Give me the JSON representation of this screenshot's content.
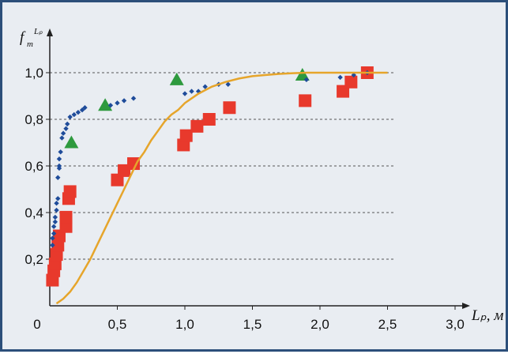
{
  "chart_data": {
    "type": "scatter",
    "ylabel": "f",
    "ylabel_sub": "m",
    "ylabel_sup": "Lₚ",
    "xlabel": "Lₚ, м",
    "xlim": [
      0,
      3.0
    ],
    "ylim": [
      0,
      1.0
    ],
    "xticks": [
      "0",
      "0,5",
      "1,0",
      "1,5",
      "2,0",
      "2,5",
      "3,0"
    ],
    "yticks": [
      "0,2",
      "0,4",
      "0,6",
      "0,8",
      "1,0"
    ],
    "grid": "horizontal dashed",
    "colors": {
      "frame": "#2c4f7a",
      "background": "#e9edf2",
      "squares": "#e8392c",
      "triangles": "#2e9a3e",
      "dots": "#1f4c9a",
      "curve": "#e6a52b"
    },
    "series": [
      {
        "marker": "square",
        "points": [
          [
            0.02,
            0.11
          ],
          [
            0.03,
            0.15
          ],
          [
            0.04,
            0.18
          ],
          [
            0.05,
            0.22
          ],
          [
            0.06,
            0.26
          ],
          [
            0.07,
            0.3
          ],
          [
            0.12,
            0.34
          ],
          [
            0.12,
            0.38
          ],
          [
            0.14,
            0.46
          ],
          [
            0.15,
            0.49
          ],
          [
            0.5,
            0.54
          ],
          [
            0.55,
            0.58
          ],
          [
            0.62,
            0.61
          ],
          [
            0.99,
            0.69
          ],
          [
            1.01,
            0.73
          ],
          [
            1.09,
            0.77
          ],
          [
            1.18,
            0.8
          ],
          [
            1.33,
            0.85
          ],
          [
            1.89,
            0.88
          ],
          [
            2.17,
            0.92
          ],
          [
            2.23,
            0.96
          ],
          [
            2.35,
            1.0
          ]
        ]
      },
      {
        "marker": "triangle",
        "points": [
          [
            0.16,
            0.7
          ],
          [
            0.41,
            0.86
          ],
          [
            0.94,
            0.97
          ],
          [
            1.87,
            0.99
          ]
        ]
      },
      {
        "marker": "dot",
        "points": [
          [
            0.02,
            0.26
          ],
          [
            0.02,
            0.29
          ],
          [
            0.03,
            0.31
          ],
          [
            0.03,
            0.34
          ],
          [
            0.04,
            0.36
          ],
          [
            0.04,
            0.38
          ],
          [
            0.05,
            0.41
          ],
          [
            0.05,
            0.44
          ],
          [
            0.06,
            0.46
          ],
          [
            0.06,
            0.55
          ],
          [
            0.07,
            0.59
          ],
          [
            0.07,
            0.6
          ],
          [
            0.07,
            0.63
          ],
          [
            0.08,
            0.66
          ],
          [
            0.09,
            0.72
          ],
          [
            0.1,
            0.74
          ],
          [
            0.12,
            0.76
          ],
          [
            0.13,
            0.78
          ],
          [
            0.15,
            0.81
          ],
          [
            0.18,
            0.82
          ],
          [
            0.21,
            0.83
          ],
          [
            0.24,
            0.84
          ],
          [
            0.26,
            0.85
          ],
          [
            0.45,
            0.86
          ],
          [
            0.5,
            0.87
          ],
          [
            0.55,
            0.88
          ],
          [
            0.62,
            0.89
          ],
          [
            1.0,
            0.91
          ],
          [
            1.05,
            0.92
          ],
          [
            1.1,
            0.92
          ],
          [
            1.15,
            0.94
          ],
          [
            1.25,
            0.95
          ],
          [
            1.32,
            0.95
          ],
          [
            1.9,
            0.97
          ],
          [
            2.15,
            0.98
          ],
          [
            2.25,
            0.99
          ],
          [
            2.35,
            1.0
          ]
        ]
      },
      {
        "marker": "line",
        "x": [
          0.05,
          0.1,
          0.15,
          0.2,
          0.25,
          0.3,
          0.35,
          0.4,
          0.45,
          0.5,
          0.55,
          0.6,
          0.65,
          0.7,
          0.75,
          0.8,
          0.85,
          0.9,
          0.95,
          1.0,
          1.1,
          1.2,
          1.3,
          1.4,
          1.5,
          1.6,
          1.7,
          1.8,
          1.9,
          2.0,
          2.2,
          2.5
        ],
        "y": [
          0.01,
          0.03,
          0.06,
          0.1,
          0.15,
          0.2,
          0.26,
          0.32,
          0.38,
          0.44,
          0.5,
          0.56,
          0.62,
          0.66,
          0.71,
          0.75,
          0.79,
          0.82,
          0.84,
          0.87,
          0.91,
          0.94,
          0.96,
          0.975,
          0.985,
          0.99,
          0.995,
          0.998,
          1.0,
          1.0,
          1.0,
          1.0
        ]
      }
    ]
  }
}
